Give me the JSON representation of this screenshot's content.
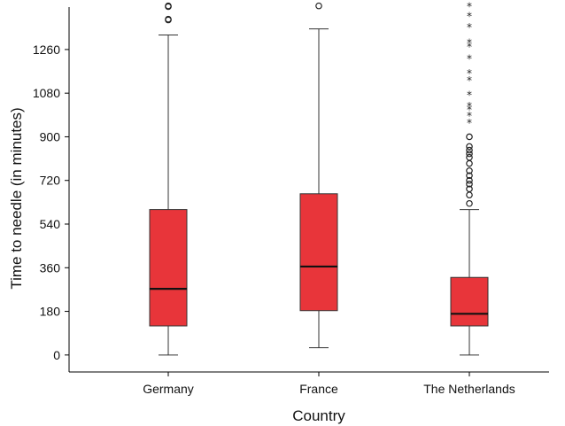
{
  "chart_data": {
    "type": "boxplot",
    "xlabel": "Country",
    "ylabel": "Time to needle (in minutes)",
    "ylim": [
      -70,
      1435
    ],
    "yticks": [
      0,
      180,
      360,
      540,
      720,
      900,
      1080,
      1260
    ],
    "categories": [
      "Germany",
      "France",
      "The Netherlands"
    ],
    "box_color": "#e8353a",
    "series": [
      {
        "category": "Germany",
        "whisker_low": 0,
        "q1": 120,
        "median": 273,
        "q3": 600,
        "whisker_high": 1320,
        "outliers": [
          {
            "value": 1440,
            "marker": "circle"
          },
          {
            "value": 1437,
            "marker": "circle"
          },
          {
            "value": 1385,
            "marker": "circle"
          },
          {
            "value": 1382,
            "marker": "circle"
          }
        ]
      },
      {
        "category": "France",
        "whisker_low": 30,
        "q1": 183,
        "median": 365,
        "q3": 665,
        "whisker_high": 1345,
        "outliers": [
          {
            "value": 1440,
            "marker": "circle"
          }
        ]
      },
      {
        "category": "The Netherlands",
        "whisker_low": 0,
        "q1": 120,
        "median": 170,
        "q3": 320,
        "whisker_high": 600,
        "outliers": [
          {
            "value": 625,
            "marker": "circle"
          },
          {
            "value": 660,
            "marker": "circle"
          },
          {
            "value": 685,
            "marker": "circle"
          },
          {
            "value": 705,
            "marker": "circle"
          },
          {
            "value": 720,
            "marker": "circle"
          },
          {
            "value": 740,
            "marker": "circle"
          },
          {
            "value": 760,
            "marker": "circle"
          },
          {
            "value": 790,
            "marker": "circle"
          },
          {
            "value": 815,
            "marker": "circle"
          },
          {
            "value": 830,
            "marker": "circle"
          },
          {
            "value": 845,
            "marker": "circle"
          },
          {
            "value": 860,
            "marker": "circle"
          },
          {
            "value": 900,
            "marker": "circle"
          },
          {
            "value": 960,
            "marker": "star"
          },
          {
            "value": 990,
            "marker": "star"
          },
          {
            "value": 1015,
            "marker": "star"
          },
          {
            "value": 1030,
            "marker": "star"
          },
          {
            "value": 1075,
            "marker": "star"
          },
          {
            "value": 1135,
            "marker": "star"
          },
          {
            "value": 1165,
            "marker": "star"
          },
          {
            "value": 1225,
            "marker": "star"
          },
          {
            "value": 1275,
            "marker": "star"
          },
          {
            "value": 1290,
            "marker": "star"
          },
          {
            "value": 1355,
            "marker": "star"
          },
          {
            "value": 1400,
            "marker": "star"
          },
          {
            "value": 1440,
            "marker": "star"
          }
        ]
      }
    ]
  }
}
